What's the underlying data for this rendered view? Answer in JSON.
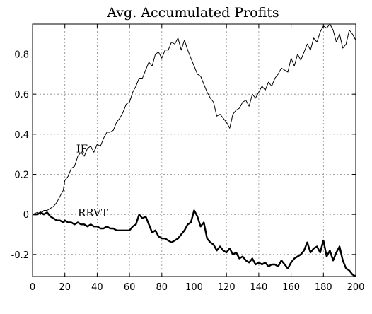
{
  "chart_data": {
    "type": "line",
    "title": "Avg. Accumulated Profits",
    "xlabel": "",
    "ylabel": "",
    "xlim": [
      0,
      200
    ],
    "ylim": [
      -0.31,
      0.95
    ],
    "xticks": [
      0,
      20,
      40,
      60,
      80,
      100,
      120,
      140,
      160,
      180,
      200
    ],
    "xtick_labels": [
      "0",
      "20",
      "40",
      "60",
      "80",
      "100",
      "120",
      "140",
      "160",
      "180",
      "200"
    ],
    "yticks": [
      -0.2,
      0,
      0.2,
      0.4,
      0.6,
      0.8
    ],
    "ytick_labels": [
      "-0.2",
      "0",
      "0.2",
      "0.4",
      "0.6",
      "0.8"
    ],
    "grid": true,
    "annotations": [
      {
        "text": "IF",
        "x": 27,
        "y": 0.31
      },
      {
        "text": "RRVT",
        "x": 28,
        "y": -0.01
      }
    ],
    "series": [
      {
        "name": "IF",
        "line_width": "thin",
        "x": [
          0,
          3,
          5,
          7,
          9,
          11,
          13,
          15,
          17,
          19,
          20,
          22,
          24,
          26,
          28,
          30,
          32,
          34,
          36,
          38,
          40,
          42,
          44,
          46,
          48,
          50,
          52,
          54,
          56,
          58,
          60,
          62,
          64,
          66,
          68,
          70,
          72,
          74,
          76,
          78,
          80,
          82,
          84,
          86,
          88,
          90,
          92,
          94,
          96,
          98,
          100,
          102,
          104,
          106,
          108,
          110,
          112,
          114,
          116,
          118,
          120,
          122,
          124,
          126,
          128,
          130,
          132,
          134,
          136,
          138,
          140,
          142,
          144,
          146,
          148,
          150,
          152,
          154,
          156,
          158,
          160,
          162,
          164,
          166,
          168,
          170,
          172,
          174,
          176,
          178,
          180,
          182,
          184,
          186,
          188,
          190,
          192,
          194,
          196,
          198,
          200
        ],
        "values": [
          0,
          0.01,
          0.0,
          0.02,
          0.02,
          0.03,
          0.04,
          0.06,
          0.09,
          0.12,
          0.17,
          0.19,
          0.23,
          0.24,
          0.29,
          0.31,
          0.29,
          0.33,
          0.34,
          0.31,
          0.35,
          0.34,
          0.38,
          0.41,
          0.41,
          0.42,
          0.46,
          0.48,
          0.51,
          0.55,
          0.56,
          0.61,
          0.64,
          0.68,
          0.68,
          0.72,
          0.76,
          0.74,
          0.8,
          0.81,
          0.78,
          0.82,
          0.82,
          0.86,
          0.85,
          0.88,
          0.82,
          0.87,
          0.82,
          0.78,
          0.74,
          0.7,
          0.69,
          0.65,
          0.61,
          0.58,
          0.56,
          0.49,
          0.5,
          0.48,
          0.46,
          0.43,
          0.5,
          0.52,
          0.53,
          0.56,
          0.57,
          0.54,
          0.6,
          0.58,
          0.61,
          0.64,
          0.62,
          0.66,
          0.64,
          0.68,
          0.7,
          0.73,
          0.72,
          0.71,
          0.78,
          0.74,
          0.8,
          0.77,
          0.81,
          0.85,
          0.82,
          0.88,
          0.86,
          0.91,
          0.94,
          0.93,
          0.95,
          0.92,
          0.86,
          0.9,
          0.83,
          0.85,
          0.92,
          0.9,
          0.87
        ]
      },
      {
        "name": "RRVT",
        "line_width": "thick",
        "x": [
          0,
          3,
          5,
          7,
          9,
          11,
          13,
          15,
          17,
          19,
          20,
          22,
          24,
          26,
          28,
          30,
          32,
          34,
          36,
          38,
          40,
          42,
          44,
          46,
          48,
          50,
          52,
          54,
          56,
          58,
          60,
          62,
          64,
          66,
          68,
          70,
          72,
          74,
          76,
          78,
          80,
          82,
          84,
          86,
          88,
          90,
          92,
          94,
          96,
          98,
          100,
          102,
          104,
          106,
          108,
          110,
          112,
          114,
          116,
          118,
          120,
          122,
          124,
          126,
          128,
          130,
          132,
          134,
          136,
          138,
          140,
          142,
          144,
          146,
          148,
          150,
          152,
          154,
          156,
          158,
          160,
          162,
          164,
          166,
          168,
          170,
          172,
          174,
          176,
          178,
          180,
          182,
          184,
          186,
          188,
          190,
          192,
          194,
          196,
          198,
          200
        ],
        "values": [
          0,
          0.0,
          0.01,
          0.0,
          0.01,
          -0.01,
          -0.02,
          -0.03,
          -0.03,
          -0.04,
          -0.03,
          -0.04,
          -0.04,
          -0.05,
          -0.04,
          -0.05,
          -0.05,
          -0.06,
          -0.05,
          -0.06,
          -0.06,
          -0.07,
          -0.07,
          -0.06,
          -0.07,
          -0.07,
          -0.08,
          -0.08,
          -0.08,
          -0.08,
          -0.08,
          -0.06,
          -0.05,
          0.0,
          -0.02,
          -0.01,
          -0.05,
          -0.09,
          -0.08,
          -0.11,
          -0.12,
          -0.12,
          -0.13,
          -0.14,
          -0.13,
          -0.12,
          -0.1,
          -0.08,
          -0.05,
          -0.04,
          0.02,
          -0.01,
          -0.06,
          -0.04,
          -0.12,
          -0.14,
          -0.15,
          -0.18,
          -0.16,
          -0.18,
          -0.19,
          -0.17,
          -0.2,
          -0.19,
          -0.22,
          -0.21,
          -0.23,
          -0.24,
          -0.22,
          -0.25,
          -0.24,
          -0.25,
          -0.24,
          -0.26,
          -0.25,
          -0.25,
          -0.26,
          -0.23,
          -0.25,
          -0.27,
          -0.24,
          -0.22,
          -0.21,
          -0.2,
          -0.18,
          -0.14,
          -0.19,
          -0.17,
          -0.16,
          -0.19,
          -0.13,
          -0.21,
          -0.18,
          -0.23,
          -0.19,
          -0.16,
          -0.23,
          -0.27,
          -0.28,
          -0.3,
          -0.31
        ]
      }
    ]
  }
}
